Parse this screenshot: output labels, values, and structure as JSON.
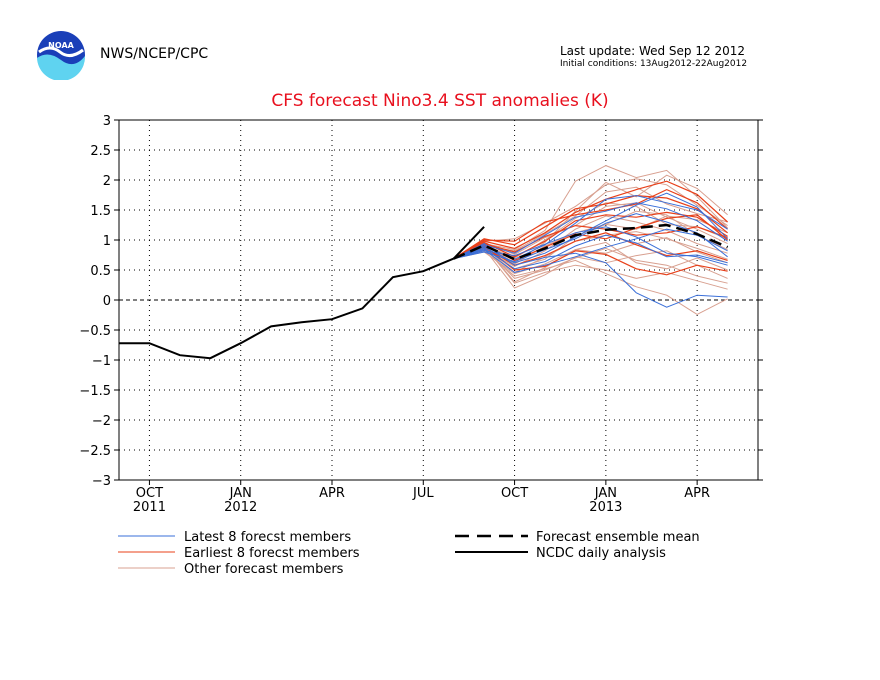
{
  "header": {
    "agency": "NWS/NCEP/CPC",
    "last_update": "Last update: Wed Sep 12 2012",
    "initial_conditions": "Initial conditions: 13Aug2012-22Aug2012",
    "logo_text": "NOAA"
  },
  "colors": {
    "latest": "#3a6fd8",
    "earliest": "#e8401a",
    "other": "#d8a090",
    "title": "#e8101e",
    "analysis": "#000000"
  },
  "legend": {
    "latest": "Latest 8 forecst members",
    "earliest": "Earliest 8 forecst members",
    "other": "Other forecast members",
    "mean": "Forecast ensemble mean",
    "analysis": "NCDC daily analysis"
  },
  "chart_data": {
    "type": "line",
    "title": "CFS forecast Nino3.4 SST anomalies (K)",
    "ylim": [
      -3,
      3
    ],
    "yticks": [
      -3,
      -2.5,
      -2,
      -1.5,
      -1,
      -0.5,
      0,
      0.5,
      1,
      1.5,
      2,
      2.5,
      3
    ],
    "xlim": [
      -1,
      20
    ],
    "xticks": [
      {
        "x": 0,
        "label": "OCT",
        "sub": "2011"
      },
      {
        "x": 3,
        "label": "JAN",
        "sub": "2012"
      },
      {
        "x": 6,
        "label": "APR",
        "sub": ""
      },
      {
        "x": 9,
        "label": "JUL",
        "sub": ""
      },
      {
        "x": 12,
        "label": "OCT",
        "sub": ""
      },
      {
        "x": 15,
        "label": "JAN",
        "sub": "2013"
      },
      {
        "x": 18,
        "label": "APR",
        "sub": ""
      }
    ],
    "grid": true,
    "zero_line": true,
    "analysis": {
      "name": "NCDC daily analysis",
      "x": [
        -1,
        0,
        1,
        2,
        3,
        4,
        5,
        6,
        7,
        8,
        9,
        10,
        10.4,
        11,
        12
      ],
      "y": [
        -0.72,
        -0.72,
        -0.92,
        -0.97,
        -0.72,
        -0.44,
        -0.37,
        -0.32,
        -0.14,
        0.38,
        0.48,
        0.69,
        0.69,
        1.22,
        null
      ]
    },
    "analysis_segments": [
      {
        "x": [
          -1,
          0,
          1,
          2,
          3,
          4,
          5,
          6,
          7,
          8,
          9,
          10
        ],
        "y": [
          -0.72,
          -0.72,
          -0.92,
          -0.97,
          -0.72,
          -0.44,
          -0.37,
          -0.32,
          -0.14,
          0.38,
          0.48,
          0.69
        ]
      },
      {
        "x": [
          10,
          11
        ],
        "y": [
          0.69,
          1.22
        ]
      }
    ],
    "mean": {
      "name": "Forecast ensemble mean",
      "x": [
        10,
        11,
        12,
        13,
        14,
        15,
        16,
        17,
        18,
        19
      ],
      "y": [
        0.69,
        0.91,
        0.68,
        0.86,
        1.08,
        1.17,
        1.2,
        1.25,
        1.1,
        0.88
      ]
    },
    "members_x": [
      10,
      11,
      12,
      13,
      14,
      15,
      16,
      17,
      18,
      19
    ],
    "latest_members": [
      [
        0.69,
        0.88,
        0.62,
        0.78,
        1.05,
        1.32,
        1.58,
        1.78,
        1.55,
        1.02
      ],
      [
        0.69,
        0.82,
        0.74,
        0.93,
        1.12,
        1.22,
        1.05,
        0.78,
        0.72,
        0.58
      ],
      [
        0.69,
        0.94,
        0.58,
        0.71,
        0.78,
        0.62,
        0.12,
        -0.12,
        0.08,
        0.05
      ],
      [
        0.69,
        0.92,
        0.78,
        1.08,
        1.38,
        1.48,
        1.62,
        1.52,
        1.32,
        0.98
      ],
      [
        0.69,
        0.86,
        0.52,
        0.64,
        0.9,
        1.08,
        0.95,
        0.72,
        0.75,
        0.62
      ],
      [
        0.69,
        0.9,
        0.68,
        0.92,
        1.28,
        1.68,
        1.74,
        1.62,
        1.5,
        1.18
      ],
      [
        0.69,
        0.84,
        0.46,
        0.58,
        0.72,
        0.88,
        1.02,
        1.18,
        1.08,
        0.82
      ],
      [
        0.69,
        0.8,
        0.64,
        0.84,
        1.02,
        1.28,
        1.44,
        1.3,
        1.12,
        0.72
      ]
    ],
    "earliest_members": [
      [
        0.69,
        0.98,
        0.86,
        1.12,
        1.46,
        1.68,
        1.84,
        1.98,
        1.76,
        1.3
      ],
      [
        0.69,
        0.96,
        0.72,
        0.98,
        1.32,
        1.42,
        1.38,
        1.46,
        1.38,
        1.06
      ],
      [
        0.69,
        1.02,
        0.92,
        1.22,
        1.52,
        1.6,
        1.74,
        1.7,
        1.52,
        1.12
      ],
      [
        0.69,
        0.88,
        0.58,
        0.74,
        0.98,
        1.12,
        0.92,
        0.74,
        0.82,
        0.66
      ],
      [
        0.69,
        0.94,
        0.8,
        1.06,
        1.24,
        1.18,
        1.08,
        1.12,
        1.22,
        1.04
      ],
      [
        0.69,
        0.9,
        0.5,
        0.56,
        0.82,
        0.76,
        0.52,
        0.42,
        0.58,
        0.48
      ],
      [
        0.69,
        1.0,
        0.98,
        1.3,
        1.42,
        1.5,
        1.6,
        1.84,
        1.62,
        1.18
      ],
      [
        0.69,
        0.92,
        0.66,
        0.88,
        1.1,
        1.02,
        1.2,
        1.36,
        1.42,
        1.0
      ]
    ],
    "other_members": [
      [
        0.69,
        0.82,
        0.4,
        0.52,
        0.66,
        0.44,
        0.22,
        0.08,
        -0.24,
        0.02
      ],
      [
        0.69,
        0.86,
        0.2,
        0.42,
        0.72,
        0.62,
        0.74,
        0.82,
        0.58,
        0.36
      ],
      [
        0.69,
        0.9,
        0.3,
        0.54,
        0.84,
        0.96,
        0.62,
        0.52,
        0.7,
        0.5
      ],
      [
        0.69,
        0.94,
        0.84,
        1.16,
        1.98,
        2.24,
        2.04,
        2.16,
        1.72,
        1.2
      ],
      [
        0.69,
        0.92,
        0.62,
        0.96,
        1.48,
        1.96,
        1.72,
        2.08,
        1.86,
        1.42
      ],
      [
        0.69,
        0.96,
        0.76,
        1.04,
        1.24,
        1.56,
        1.62,
        1.38,
        1.18,
        0.94
      ],
      [
        0.69,
        0.84,
        0.56,
        0.82,
        1.18,
        1.4,
        1.3,
        1.16,
        0.94,
        0.78
      ],
      [
        0.69,
        0.88,
        0.46,
        0.72,
        0.98,
        1.08,
        1.14,
        1.02,
        0.86,
        0.68
      ],
      [
        0.69,
        0.9,
        0.28,
        0.46,
        0.58,
        0.5,
        0.36,
        0.46,
        0.32,
        0.18
      ],
      [
        0.69,
        0.98,
        1.02,
        1.28,
        1.56,
        1.92,
        2.02,
        1.92,
        1.58,
        1.24
      ],
      [
        0.69,
        0.86,
        0.52,
        0.68,
        1.06,
        1.26,
        1.48,
        1.42,
        1.08,
        0.84
      ],
      [
        0.69,
        0.92,
        0.7,
        1.0,
        1.36,
        1.62,
        1.56,
        1.26,
        1.22,
        1.02
      ],
      [
        0.69,
        0.8,
        0.44,
        0.6,
        0.84,
        0.78,
        0.94,
        1.04,
        0.8,
        0.62
      ],
      [
        0.69,
        0.94,
        0.6,
        0.9,
        1.12,
        1.26,
        1.18,
        1.4,
        1.34,
        1.12
      ],
      [
        0.69,
        0.88,
        0.36,
        0.5,
        0.7,
        0.86,
        0.66,
        0.58,
        0.4,
        0.28
      ],
      [
        0.69,
        0.9,
        0.82,
        1.1,
        1.4,
        1.8,
        1.88,
        1.6,
        1.44,
        1.3
      ]
    ]
  }
}
